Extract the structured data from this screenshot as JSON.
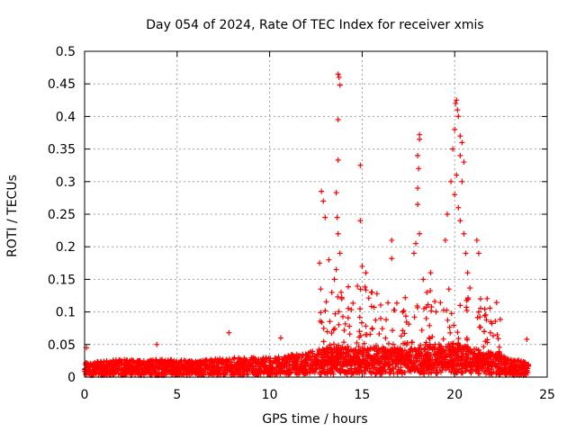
{
  "chart_data": {
    "type": "scatter",
    "title": "Day 054 of 2024, Rate Of TEC Index for receiver xmis",
    "xlabel": "GPS time / hours",
    "ylabel": "ROTI / TECUs",
    "xlim": [
      0,
      25
    ],
    "ylim": [
      0,
      0.5
    ],
    "x_ticks": [
      0,
      5,
      10,
      15,
      20,
      25
    ],
    "y_ticks": [
      0,
      0.05,
      0.1,
      0.15,
      0.2,
      0.25,
      0.3,
      0.35,
      0.4,
      0.45,
      0.5
    ],
    "grid": true,
    "marker": "+",
    "series": [
      {
        "name": "ROTI",
        "color": "#ff0000",
        "baseline_by_hour": [
          {
            "x": 0,
            "y": 0.015
          },
          {
            "x": 2,
            "y": 0.018
          },
          {
            "x": 4,
            "y": 0.018
          },
          {
            "x": 6,
            "y": 0.017
          },
          {
            "x": 8,
            "y": 0.02
          },
          {
            "x": 10,
            "y": 0.02
          },
          {
            "x": 12,
            "y": 0.025
          },
          {
            "x": 13,
            "y": 0.03
          },
          {
            "x": 14,
            "y": 0.03
          },
          {
            "x": 16,
            "y": 0.03
          },
          {
            "x": 18,
            "y": 0.03
          },
          {
            "x": 20,
            "y": 0.035
          },
          {
            "x": 22,
            "y": 0.025
          },
          {
            "x": 24,
            "y": 0.015
          }
        ],
        "notable_points": [
          {
            "x": 0.1,
            "y": 0.045
          },
          {
            "x": 3.9,
            "y": 0.05
          },
          {
            "x": 7.8,
            "y": 0.068
          },
          {
            "x": 10.6,
            "y": 0.06
          },
          {
            "x": 12.8,
            "y": 0.285
          },
          {
            "x": 12.9,
            "y": 0.27
          },
          {
            "x": 13.0,
            "y": 0.245
          },
          {
            "x": 12.7,
            "y": 0.175
          },
          {
            "x": 13.2,
            "y": 0.18
          },
          {
            "x": 13.5,
            "y": 0.15
          },
          {
            "x": 13.7,
            "y": 0.465
          },
          {
            "x": 13.75,
            "y": 0.46
          },
          {
            "x": 13.8,
            "y": 0.448
          },
          {
            "x": 13.7,
            "y": 0.395
          },
          {
            "x": 13.7,
            "y": 0.333
          },
          {
            "x": 13.6,
            "y": 0.283
          },
          {
            "x": 13.65,
            "y": 0.245
          },
          {
            "x": 13.7,
            "y": 0.22
          },
          {
            "x": 13.8,
            "y": 0.19
          },
          {
            "x": 13.6,
            "y": 0.165
          },
          {
            "x": 13.9,
            "y": 0.12
          },
          {
            "x": 14.9,
            "y": 0.325
          },
          {
            "x": 14.9,
            "y": 0.24
          },
          {
            "x": 15.0,
            "y": 0.17
          },
          {
            "x": 15.2,
            "y": 0.16
          },
          {
            "x": 15.5,
            "y": 0.13
          },
          {
            "x": 15.8,
            "y": 0.128
          },
          {
            "x": 16.0,
            "y": 0.09
          },
          {
            "x": 16.6,
            "y": 0.21
          },
          {
            "x": 16.6,
            "y": 0.182
          },
          {
            "x": 17.2,
            "y": 0.1
          },
          {
            "x": 17.8,
            "y": 0.19
          },
          {
            "x": 18.1,
            "y": 0.372
          },
          {
            "x": 18.1,
            "y": 0.365
          },
          {
            "x": 18.0,
            "y": 0.34
          },
          {
            "x": 18.05,
            "y": 0.32
          },
          {
            "x": 18.0,
            "y": 0.29
          },
          {
            "x": 18.0,
            "y": 0.265
          },
          {
            "x": 18.1,
            "y": 0.22
          },
          {
            "x": 17.9,
            "y": 0.205
          },
          {
            "x": 18.3,
            "y": 0.15
          },
          {
            "x": 18.5,
            "y": 0.13
          },
          {
            "x": 18.7,
            "y": 0.16
          },
          {
            "x": 19.5,
            "y": 0.21
          },
          {
            "x": 19.6,
            "y": 0.25
          },
          {
            "x": 19.8,
            "y": 0.3
          },
          {
            "x": 19.9,
            "y": 0.35
          },
          {
            "x": 20.0,
            "y": 0.38
          },
          {
            "x": 20.05,
            "y": 0.42
          },
          {
            "x": 20.1,
            "y": 0.425
          },
          {
            "x": 20.15,
            "y": 0.41
          },
          {
            "x": 20.2,
            "y": 0.4
          },
          {
            "x": 20.3,
            "y": 0.37
          },
          {
            "x": 20.4,
            "y": 0.36
          },
          {
            "x": 20.3,
            "y": 0.34
          },
          {
            "x": 20.5,
            "y": 0.33
          },
          {
            "x": 20.1,
            "y": 0.31
          },
          {
            "x": 20.4,
            "y": 0.3
          },
          {
            "x": 20.0,
            "y": 0.28
          },
          {
            "x": 20.2,
            "y": 0.26
          },
          {
            "x": 20.3,
            "y": 0.24
          },
          {
            "x": 20.5,
            "y": 0.22
          },
          {
            "x": 20.6,
            "y": 0.19
          },
          {
            "x": 20.7,
            "y": 0.16
          },
          {
            "x": 21.2,
            "y": 0.21
          },
          {
            "x": 21.3,
            "y": 0.19
          },
          {
            "x": 21.4,
            "y": 0.12
          },
          {
            "x": 21.3,
            "y": 0.1
          },
          {
            "x": 21.6,
            "y": 0.07
          },
          {
            "x": 22.3,
            "y": 0.065
          },
          {
            "x": 23.9,
            "y": 0.058
          }
        ]
      }
    ]
  }
}
